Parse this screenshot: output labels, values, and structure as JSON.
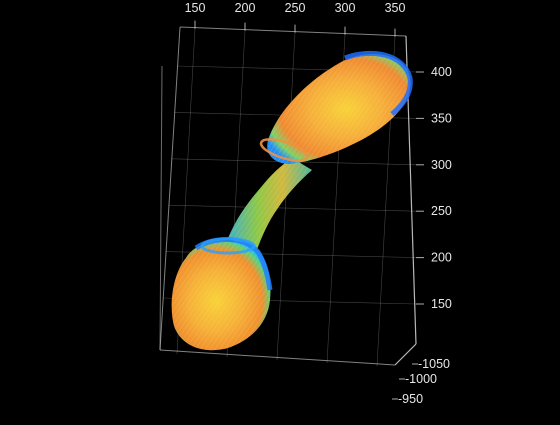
{
  "chart_data": {
    "type": "surface-3d",
    "title": "",
    "xlabel": "",
    "ylabel": "",
    "zlabel": "",
    "x_ticks": [
      150,
      200,
      250,
      300,
      350
    ],
    "y_ticks": [
      -1050,
      -1000,
      -950
    ],
    "z_ticks": [
      150,
      200,
      250,
      300,
      350,
      400
    ],
    "x_tick_labels": [
      "150",
      "200",
      "250",
      "300",
      "350"
    ],
    "y_tick_labels": [
      "-1050",
      "-1000",
      "-950"
    ],
    "z_tick_labels": [
      "150",
      "200",
      "250",
      "300",
      "350",
      "400"
    ],
    "grid": true,
    "background_color": "#000000",
    "axis_color": "#d9d9d9",
    "colormap": [
      "#1f6fff",
      "#1fb7ff",
      "#5fd07a",
      "#c8d23c",
      "#f4a23a",
      "#f8d23a"
    ],
    "object": {
      "description_hidden": true,
      "lobes": [
        {
          "name": "lower-lobe",
          "x": 205,
          "z": 165,
          "y": -985
        },
        {
          "name": "neck",
          "x": 255,
          "z": 255,
          "y": -1000
        },
        {
          "name": "upper-lobe",
          "x": 320,
          "z": 355,
          "y": -1020
        }
      ]
    }
  }
}
